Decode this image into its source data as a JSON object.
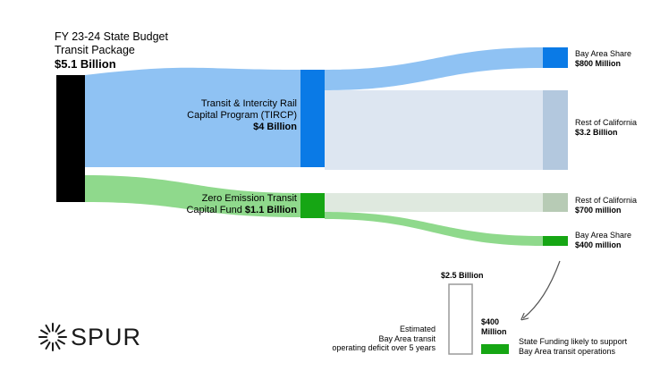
{
  "source": {
    "title_line1": "FY 23-24 State Budget",
    "title_line2": "Transit Package",
    "total": "$5.1 Billion"
  },
  "tircp": {
    "line1": "Transit & Intercity Rail",
    "line2": "Capital Program (TIRCP)",
    "amount": "$4 Billion",
    "value_billion": 4.0
  },
  "zetcp": {
    "line1": "Zero Emission Transit",
    "line2_prefix": "Capital Fund ",
    "amount": "$1.1 Billion",
    "value_billion": 1.1
  },
  "targets": [
    {
      "label": "Bay Area Share",
      "amount": "$800 Million",
      "value_billion": 0.8
    },
    {
      "label": "Rest of California",
      "amount": "$3.2 Billion",
      "value_billion": 3.2
    },
    {
      "label": "Rest of California",
      "amount": "$700 million",
      "value_billion": 0.7
    },
    {
      "label": "Bay Area Share",
      "amount": "$400 million",
      "value_billion": 0.4
    }
  ],
  "comparison": {
    "deficit_amount": "$2.5 Billion",
    "deficit_value_billion": 2.5,
    "deficit_line1": "Estimated",
    "deficit_line2": "Bay Area transit",
    "deficit_line3": "operating deficit over 5 years",
    "funding_amount_line1": "$400",
    "funding_amount_line2": "Million",
    "funding_value_billion": 0.4,
    "funding_line1": "State Funding likely to support",
    "funding_line2": "Bay Area transit operations"
  },
  "logo": {
    "text": "SPUR"
  },
  "colors": {
    "source_node": "#000000",
    "tircp_node": "#0a7ae6",
    "tircp_flow": "#8fc2f3",
    "bay_share_flow": "#8fc2f3",
    "rest_ca_flow": "#dde6f1",
    "rest_ca_node": "#b3c8de",
    "zetcp_node": "#16a614",
    "zetcp_flow": "#8fd98c",
    "rest_ca_green_flow": "#dfe9df",
    "rest_ca_green_node": "#b7cbb5",
    "bay_share_green": "#16a614"
  }
}
